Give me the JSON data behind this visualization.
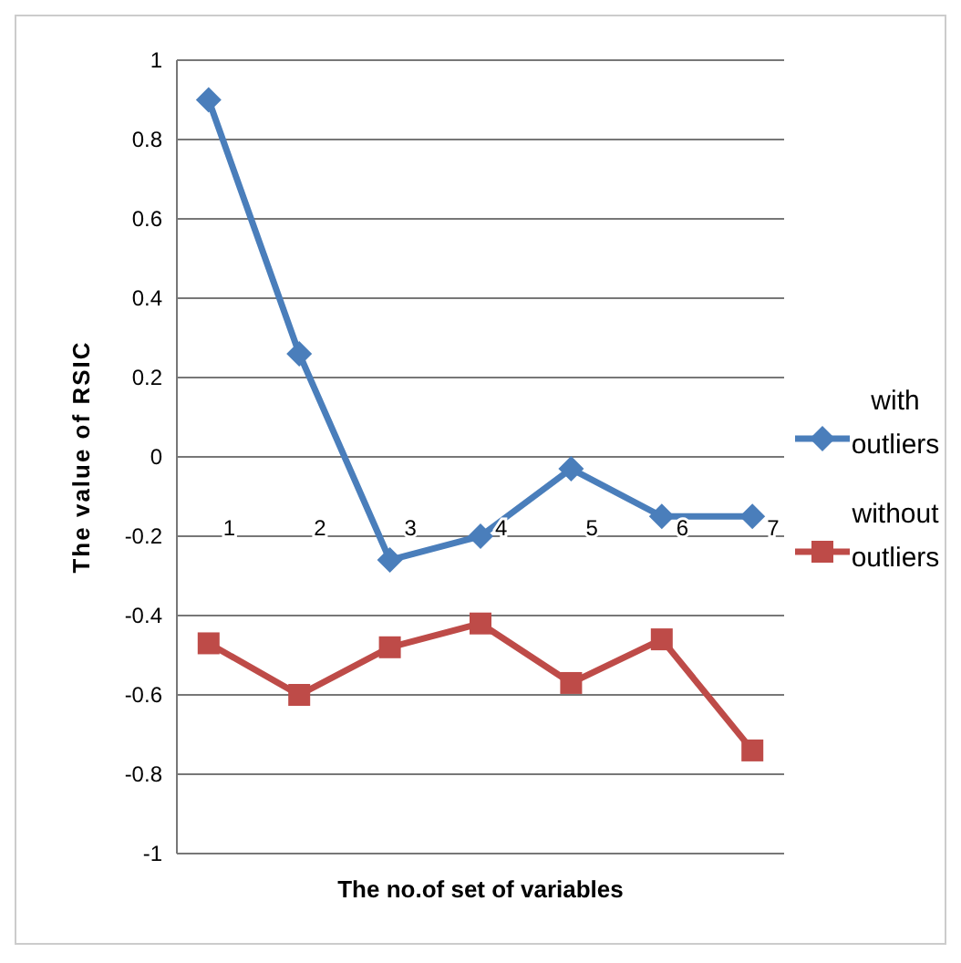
{
  "chart_data": {
    "type": "line",
    "xlabel": "The no.of set of variables",
    "ylabel": "The value of RSIC",
    "categories": [
      "1",
      "2",
      "3",
      "4",
      "5",
      "6",
      "7"
    ],
    "ylim": [
      -1,
      1
    ],
    "yticks": [
      {
        "value": -1,
        "label": "-1"
      },
      {
        "value": -0.8,
        "label": "-0.8"
      },
      {
        "value": -0.6,
        "label": "-0.6"
      },
      {
        "value": -0.4,
        "label": "-0.4"
      },
      {
        "value": -0.2,
        "label": "-0.2"
      },
      {
        "value": 0,
        "label": "0"
      },
      {
        "value": 0.2,
        "label": "0.2"
      },
      {
        "value": 0.4,
        "label": "0.4"
      },
      {
        "value": 0.6,
        "label": "0.6"
      },
      {
        "value": 0.8,
        "label": "0.8"
      },
      {
        "value": 1,
        "label": "1"
      }
    ],
    "grid": "y",
    "legend": "right",
    "series": [
      {
        "name": "with outliers",
        "color": "#4a7ebb",
        "marker": "diamond",
        "values": [
          0.9,
          0.26,
          -0.26,
          -0.2,
          -0.03,
          -0.15,
          -0.15
        ]
      },
      {
        "name": "without outliers",
        "color": "#be4b48",
        "marker": "square",
        "values": [
          -0.47,
          -0.6,
          -0.48,
          -0.42,
          -0.57,
          -0.46,
          -0.74
        ]
      }
    ]
  }
}
